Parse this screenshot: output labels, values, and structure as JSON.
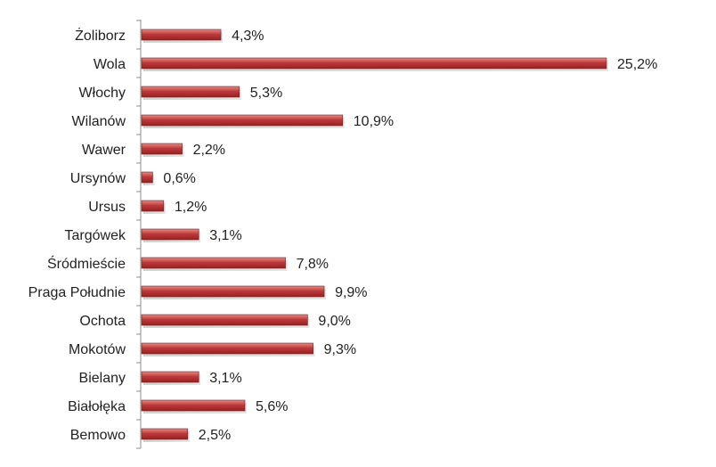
{
  "chart_data": {
    "type": "bar",
    "orientation": "horizontal",
    "categories": [
      "Żoliborz",
      "Wola",
      "Włochy",
      "Wilanów",
      "Wawer",
      "Ursynów",
      "Ursus",
      "Targówek",
      "Śródmieście",
      "Praga Południe",
      "Ochota",
      "Mokotów",
      "Bielany",
      "Białołęka",
      "Bemowo"
    ],
    "values": [
      4.3,
      25.2,
      5.3,
      10.9,
      2.2,
      0.6,
      1.2,
      3.1,
      7.8,
      9.9,
      9.0,
      9.3,
      3.1,
      5.6,
      2.5
    ],
    "value_labels": [
      "4,3%",
      "25,2%",
      "5,3%",
      "10,9%",
      "2,2%",
      "0,6%",
      "1,2%",
      "3,1%",
      "7,8%",
      "9,9%",
      "9,0%",
      "9,3%",
      "3,1%",
      "5,6%",
      "2,5%"
    ],
    "unit": "%",
    "xlim": [
      0,
      25.2
    ],
    "grid": false,
    "legend": "none",
    "title": "",
    "xlabel": "",
    "ylabel": "",
    "colors": {
      "bar_top": "#e58a8a",
      "bar_mid": "#c0393a",
      "bar_bottom": "#8e2424",
      "axis": "#8c8c8c",
      "text": "#222222"
    }
  }
}
